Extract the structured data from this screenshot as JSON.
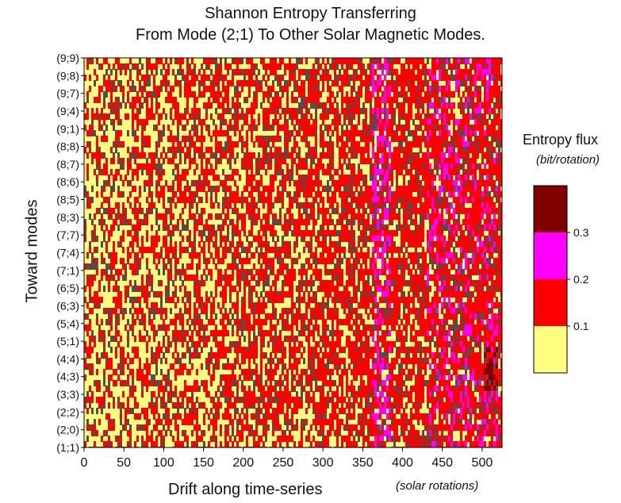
{
  "chart_data": {
    "type": "heatmap",
    "title": "Shannon Entropy Transferring",
    "subtitle": "From Mode (2;1) To Other Solar Magnetic Modes.",
    "xlabel": "Drift along time-series",
    "xunit": "(solar rotations)",
    "ylabel": "Toward modes",
    "x_ticks": [
      "0",
      "50",
      "100",
      "150",
      "200",
      "250",
      "300",
      "350",
      "400",
      "450",
      "500"
    ],
    "xlim": [
      0,
      525
    ],
    "y_ticks": [
      "(9;9)",
      "(9;8)",
      "(9;7)",
      "(9;4)",
      "(9;1)",
      "(8;8)",
      "(8;7)",
      "(8;6)",
      "(8;5)",
      "(8;3)",
      "(7;7)",
      "(7;4)",
      "(7;1)",
      "(6;5)",
      "(6;3)",
      "(5;4)",
      "(5;1)",
      "(4;4)",
      "(4;3)",
      "(3;3)",
      "(2;2)",
      "(2;0)",
      "(1;1)"
    ],
    "colorbar": {
      "title": "Entropy flux",
      "unit": "(bit/rotation)",
      "ticks": [
        "0.1",
        "0.2",
        "0.3"
      ],
      "levels": [
        {
          "range": [
            0.0,
            0.1
          ],
          "color": "#ffff80"
        },
        {
          "range": [
            0.1,
            0.2
          ],
          "color": "#ff0000"
        },
        {
          "range": [
            0.2,
            0.3
          ],
          "color": "#ff00ff"
        },
        {
          "range": [
            0.3,
            0.4
          ],
          "color": "#800000"
        }
      ],
      "contour_line_color": "#5a4a4a"
    },
    "description_regions": [
      {
        "x_range": [
          0,
          290
        ],
        "dominant": "yellow and red mix"
      },
      {
        "x_range": [
          290,
          525
        ],
        "dominant": "red with magenta streaks near 370 and 440-520, dark red spot near 510"
      }
    ]
  }
}
